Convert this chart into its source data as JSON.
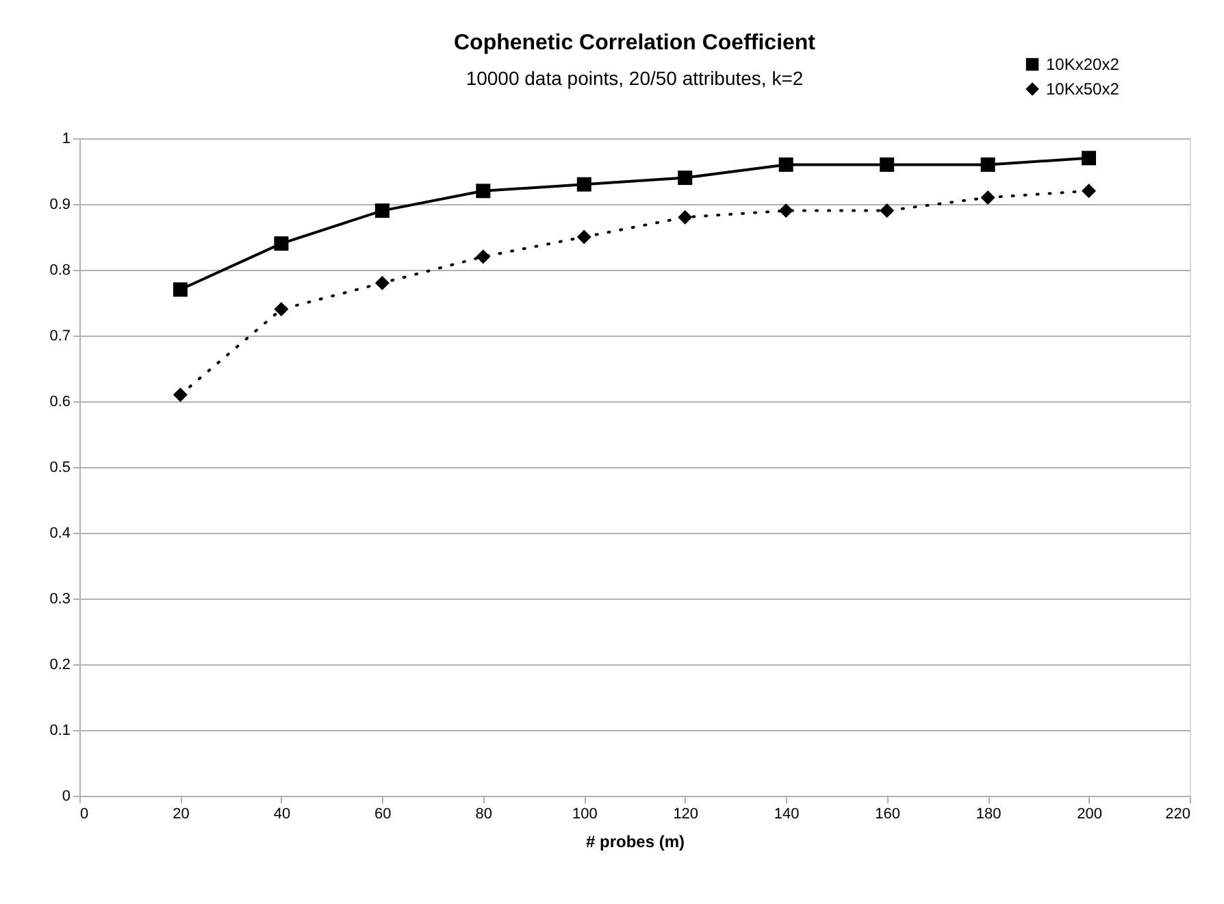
{
  "chart_data": {
    "type": "line",
    "title": "Cophenetic Correlation Coefficient",
    "subtitle": "10000 data points, 20/50 attributes, k=2",
    "xlabel": "# probes (m)",
    "x": [
      20,
      40,
      60,
      80,
      100,
      120,
      140,
      160,
      180,
      200
    ],
    "series": [
      {
        "name": "10Kx20x2",
        "color": "#000000",
        "marker": "square",
        "line_style": "solid",
        "values": [
          0.77,
          0.84,
          0.89,
          0.92,
          0.93,
          0.94,
          0.96,
          0.96,
          0.96,
          0.97
        ]
      },
      {
        "name": "10Kx50x2",
        "color": "#000000",
        "marker": "diamond",
        "line_style": "dotted",
        "values": [
          0.61,
          0.74,
          0.78,
          0.82,
          0.85,
          0.88,
          0.89,
          0.89,
          0.91,
          0.92
        ]
      }
    ],
    "xlim": [
      0,
      220
    ],
    "xticks": [
      0,
      20,
      40,
      60,
      80,
      100,
      120,
      140,
      160,
      180,
      200,
      220
    ],
    "ylim": [
      0,
      1
    ],
    "yticks": [
      0,
      0.1,
      0.2,
      0.3,
      0.4,
      0.5,
      0.6,
      0.7,
      0.8,
      0.9,
      1
    ],
    "grid": "y",
    "legend": "top right"
  }
}
